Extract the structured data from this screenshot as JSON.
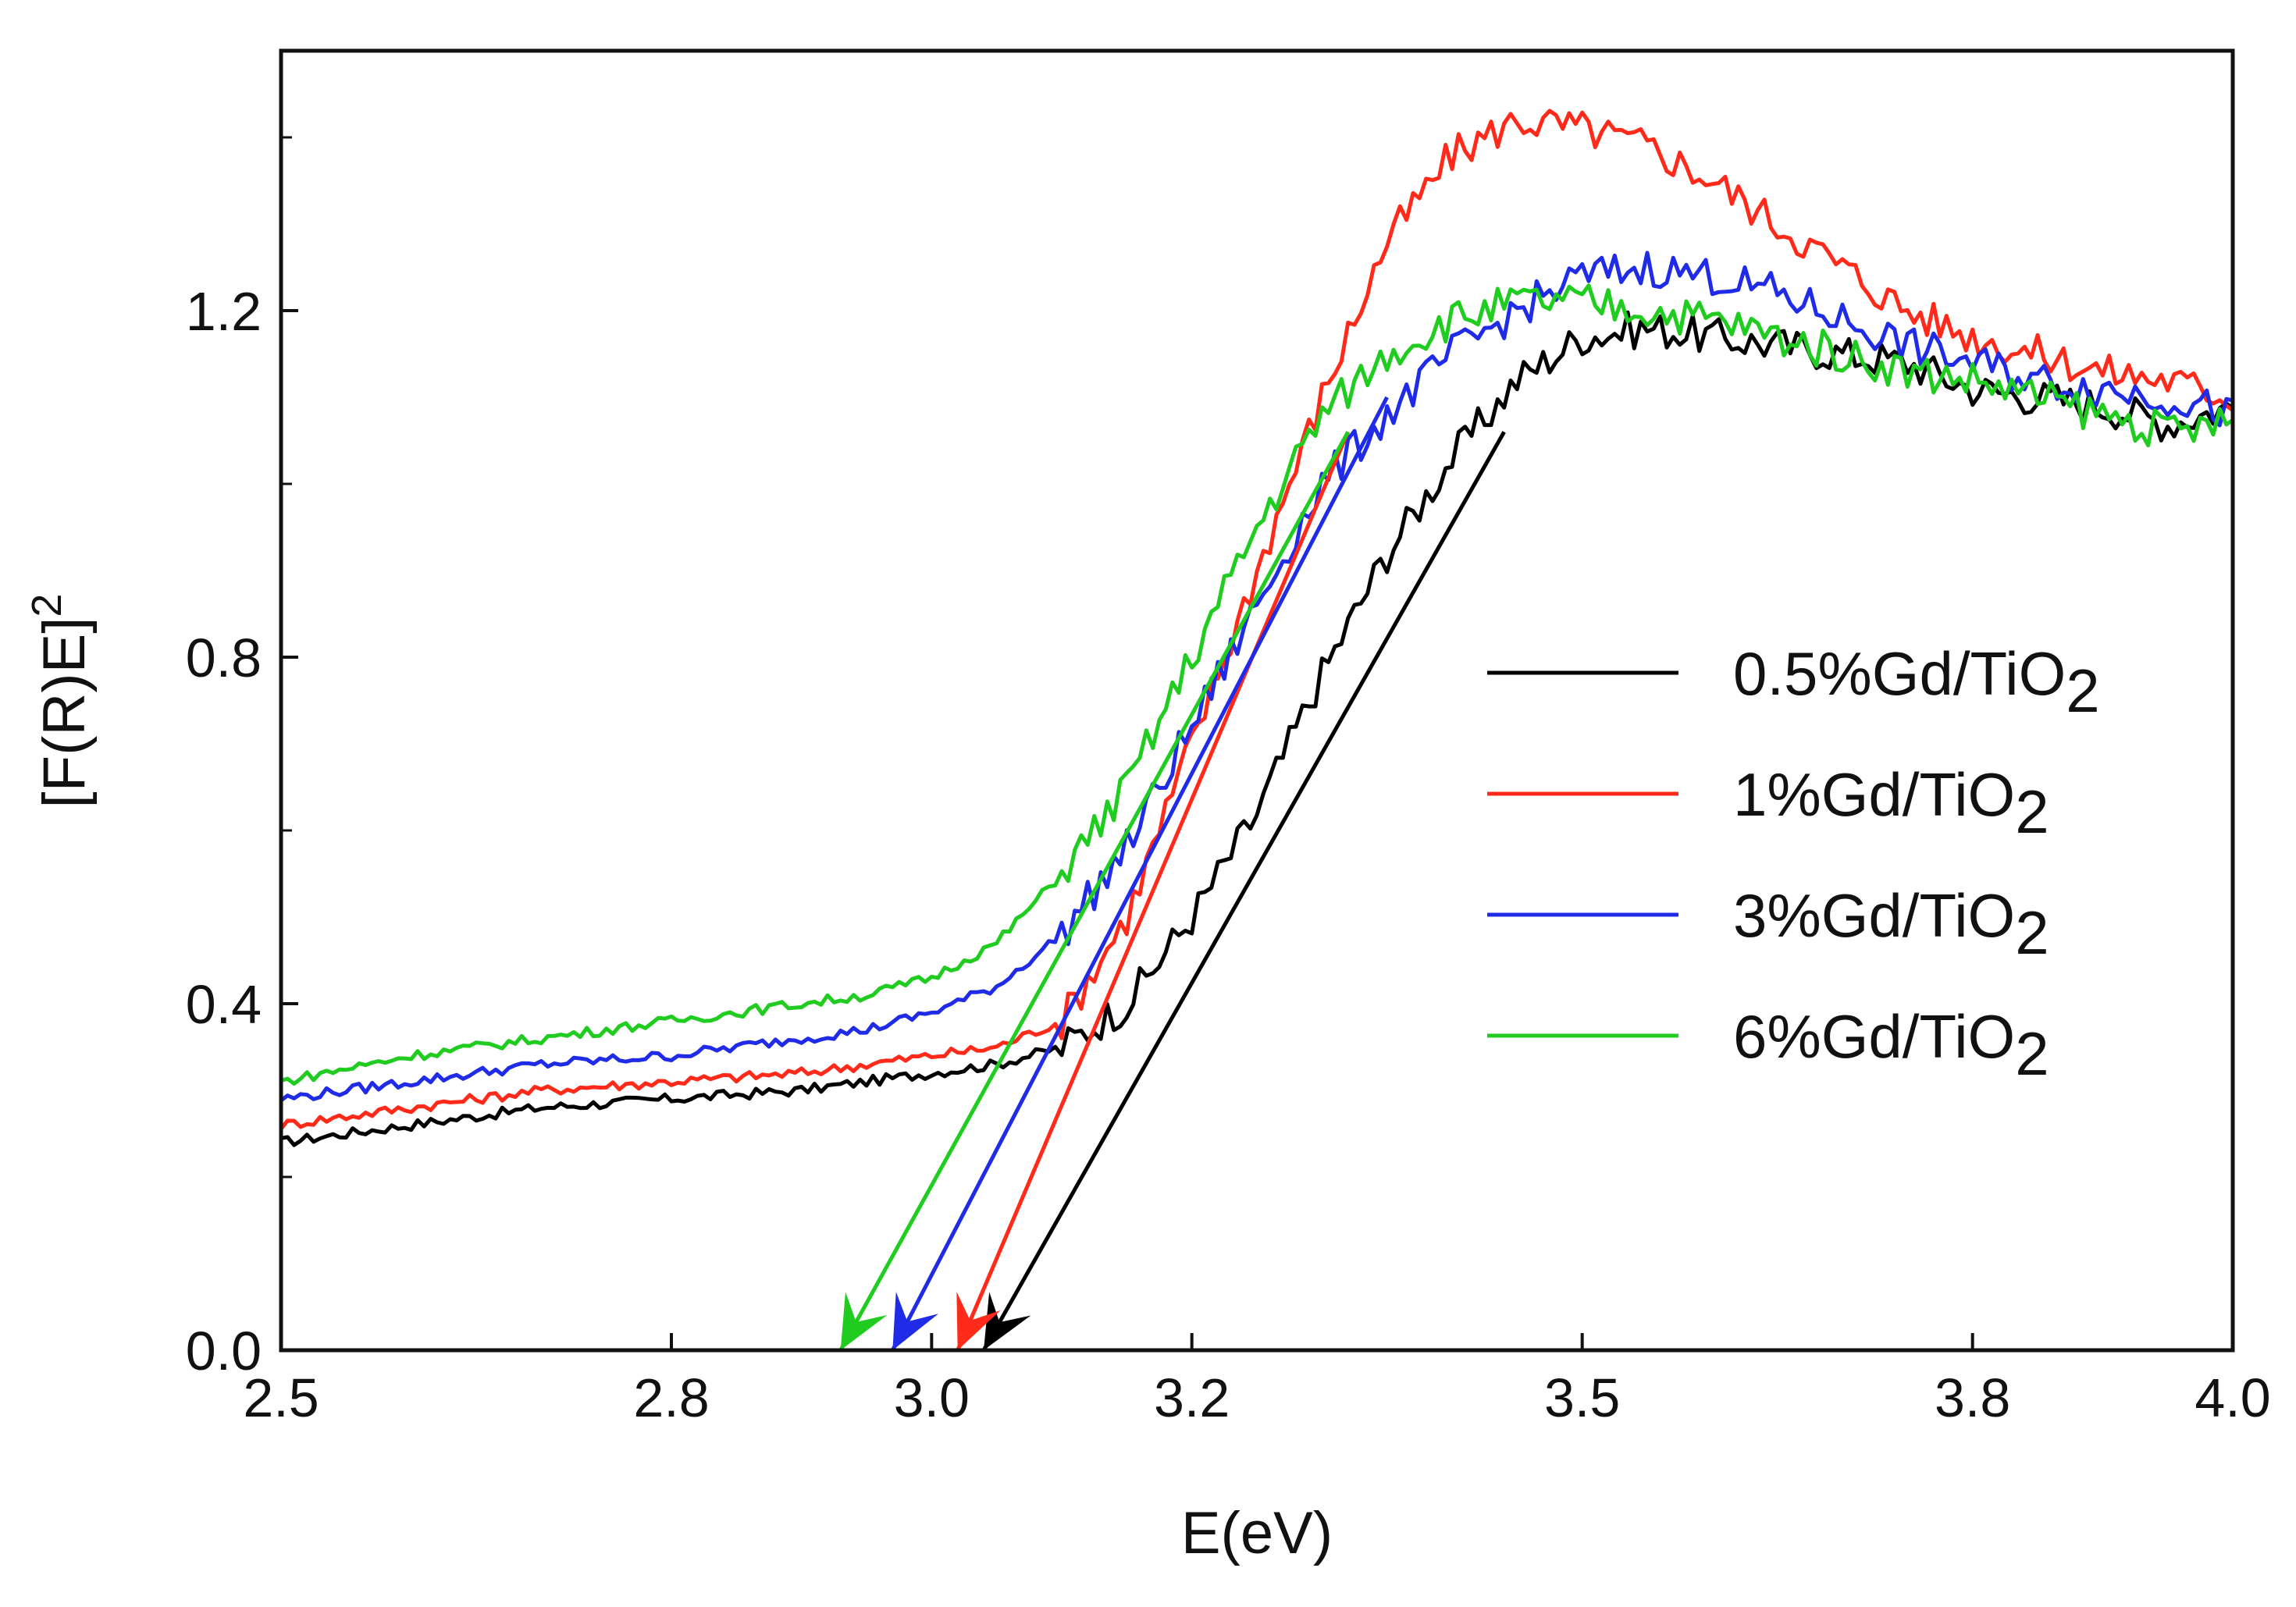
{
  "chart_data": {
    "type": "line",
    "title": "",
    "xlabel": "E(eV)",
    "ylabel": "[F(R)E]",
    "ylabel_superscript": "2",
    "xlim": [
      2.5,
      4.0
    ],
    "ylim": [
      0.0,
      1.5
    ],
    "x_ticks": [
      {
        "value": 2.5,
        "label": "2.5"
      },
      {
        "value": 2.8,
        "label": "2.8"
      },
      {
        "value": 3.0,
        "label": "3.0"
      },
      {
        "value": 3.2,
        "label": "3.2"
      },
      {
        "value": 3.5,
        "label": "3.5"
      },
      {
        "value": 3.8,
        "label": "3.8"
      },
      {
        "value": 4.0,
        "label": "4.0"
      }
    ],
    "y_ticks": [
      {
        "value": 0.0,
        "label": "0.0"
      },
      {
        "value": 0.4,
        "label": "0.4"
      },
      {
        "value": 0.8,
        "label": "0.8"
      },
      {
        "value": 1.2,
        "label": "1.2"
      }
    ],
    "grid": false,
    "legend_position": "right",
    "series": [
      {
        "name": "0.5%Gd/TiO2",
        "legend_main": "0.5%Gd/TiO",
        "legend_sub": "2",
        "color": "#000000",
        "x": [
          2.5,
          2.6,
          2.7,
          2.8,
          2.9,
          2.95,
          3.0,
          3.05,
          3.1,
          3.15,
          3.2,
          3.25,
          3.3,
          3.35,
          3.4,
          3.45,
          3.5,
          3.55,
          3.6,
          3.65,
          3.7,
          3.75,
          3.8,
          3.85,
          3.9,
          3.95,
          4.0
        ],
        "y": [
          0.24,
          0.26,
          0.28,
          0.29,
          0.3,
          0.31,
          0.32,
          0.33,
          0.35,
          0.4,
          0.5,
          0.62,
          0.78,
          0.92,
          1.03,
          1.12,
          1.17,
          1.18,
          1.17,
          1.16,
          1.15,
          1.14,
          1.11,
          1.1,
          1.09,
          1.07,
          1.09
        ],
        "tangent": {
          "x": [
            3.04,
            3.44
          ],
          "y": [
            0.0,
            1.06
          ]
        },
        "band_gap": 3.04
      },
      {
        "name": "1%Gd/TiO2",
        "legend_main": "1%Gd/TiO",
        "legend_sub": "2",
        "color": "#ff2a1a",
        "x": [
          2.5,
          2.6,
          2.7,
          2.8,
          2.9,
          2.95,
          3.0,
          3.05,
          3.1,
          3.15,
          3.2,
          3.25,
          3.3,
          3.35,
          3.4,
          3.45,
          3.5,
          3.55,
          3.6,
          3.65,
          3.7,
          3.75,
          3.8,
          3.85,
          3.9,
          3.95,
          4.0
        ],
        "y": [
          0.26,
          0.28,
          0.3,
          0.31,
          0.32,
          0.33,
          0.34,
          0.35,
          0.38,
          0.5,
          0.7,
          0.9,
          1.1,
          1.28,
          1.38,
          1.42,
          1.41,
          1.39,
          1.35,
          1.3,
          1.25,
          1.2,
          1.17,
          1.15,
          1.13,
          1.12,
          1.1
        ],
        "tangent": {
          "x": [
            3.02,
            3.32
          ],
          "y": [
            0.0,
            1.06
          ]
        },
        "band_gap": 3.02
      },
      {
        "name": "3%Gd/TiO2",
        "legend_main": "3%Gd/TiO",
        "legend_sub": "2",
        "color": "#1f2be6",
        "x": [
          2.5,
          2.6,
          2.7,
          2.8,
          2.9,
          2.95,
          3.0,
          3.05,
          3.1,
          3.15,
          3.2,
          3.25,
          3.3,
          3.35,
          3.4,
          3.45,
          3.5,
          3.55,
          3.6,
          3.65,
          3.7,
          3.75,
          3.8,
          3.85,
          3.9,
          3.95,
          4.0
        ],
        "y": [
          0.29,
          0.31,
          0.33,
          0.34,
          0.36,
          0.37,
          0.39,
          0.42,
          0.48,
          0.58,
          0.72,
          0.86,
          1.0,
          1.08,
          1.15,
          1.2,
          1.24,
          1.25,
          1.24,
          1.22,
          1.19,
          1.16,
          1.14,
          1.12,
          1.11,
          1.1,
          1.08
        ],
        "tangent": {
          "x": [
            2.97,
            3.35
          ],
          "y": [
            0.0,
            1.1
          ]
        },
        "band_gap": 2.97
      },
      {
        "name": "6%Gd/TiO2",
        "legend_main": "6%Gd/TiO",
        "legend_sub": "2",
        "color": "#1fcc1f",
        "x": [
          2.5,
          2.6,
          2.7,
          2.8,
          2.9,
          2.95,
          3.0,
          3.05,
          3.1,
          3.15,
          3.2,
          3.25,
          3.3,
          3.35,
          3.4,
          3.45,
          3.5,
          3.55,
          3.6,
          3.65,
          3.7,
          3.75,
          3.8,
          3.85,
          3.9,
          3.95,
          4.0
        ],
        "y": [
          0.31,
          0.34,
          0.36,
          0.38,
          0.4,
          0.41,
          0.43,
          0.47,
          0.55,
          0.65,
          0.8,
          0.95,
          1.08,
          1.15,
          1.19,
          1.21,
          1.21,
          1.2,
          1.19,
          1.17,
          1.15,
          1.13,
          1.12,
          1.1,
          1.08,
          1.06,
          1.07
        ],
        "tangent": {
          "x": [
            2.93,
            3.32
          ],
          "y": [
            0.0,
            1.06
          ]
        },
        "band_gap": 2.93
      }
    ]
  }
}
